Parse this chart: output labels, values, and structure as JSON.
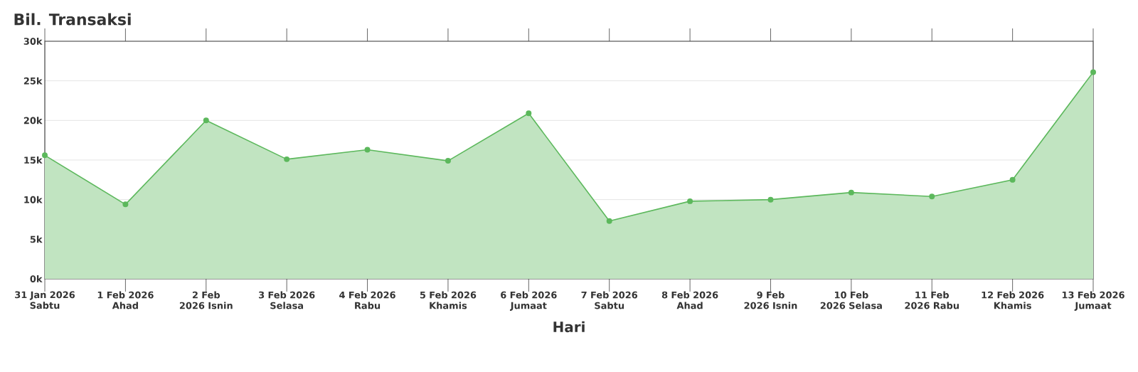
{
  "chart_data": {
    "type": "area",
    "title": "Bil. Transaksi",
    "xlabel": "Hari",
    "categories": [
      "31 Jan 2026 Sabtu",
      "1 Feb 2026 Ahad",
      "2 Feb 2026 Isnin",
      "3 Feb 2026 Selasa",
      "4 Feb 2026 Rabu",
      "5 Feb 2026 Khamis",
      "6 Feb 2026 Jumaat",
      "7 Feb 2026 Sabtu",
      "8 Feb 2026 Ahad",
      "9 Feb 2026 Isnin",
      "10 Feb 2026 Selasa",
      "11 Feb 2026 Rabu",
      "12 Feb 2026 Khamis",
      "13 Feb 2026 Jumaat"
    ],
    "values": [
      15600,
      9400,
      20000,
      15100,
      16300,
      14900,
      20900,
      7300,
      9800,
      10000,
      10900,
      10400,
      12500,
      26100
    ],
    "color": "#5cb85c",
    "ylim": [
      0,
      30000
    ],
    "yticks": [
      {
        "value": 0,
        "label": "0k"
      },
      {
        "value": 5000,
        "label": "5k"
      },
      {
        "value": 10000,
        "label": "10k"
      },
      {
        "value": 15000,
        "label": "15k"
      },
      {
        "value": 20000,
        "label": "20k"
      },
      {
        "value": 25000,
        "label": "25k"
      },
      {
        "value": 30000,
        "label": "30k"
      }
    ],
    "grid": "y",
    "marker": "circle"
  }
}
